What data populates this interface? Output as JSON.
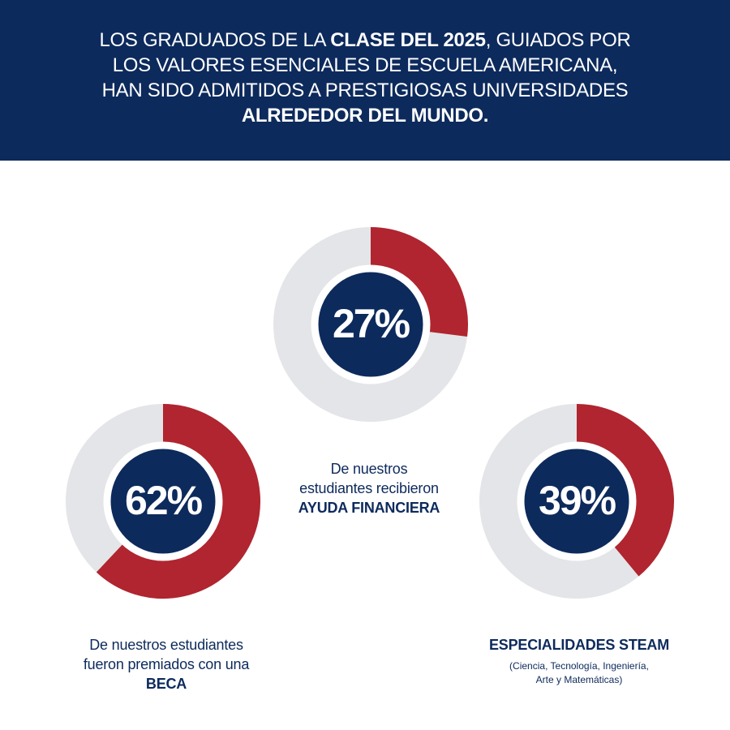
{
  "colors": {
    "navy": "#0d2a5c",
    "red": "#b0252f",
    "track": "#e4e5e8",
    "white": "#ffffff"
  },
  "header": {
    "line1_pre": "LOS GRADUADOS DE LA ",
    "line1_bold": "CLASE DEL 2025",
    "line1_post": ", GUIADOS POR",
    "line2": "LOS VALORES ESENCIALES DE ESCUELA AMERICANA,",
    "line3": "HAN SIDO ADMITIDOS A PRESTIGIOSAS UNIVERSIDADES",
    "line4_bold": "ALREDEDOR DEL MUNDO."
  },
  "stats": [
    {
      "id": "ayuda",
      "percent": 27,
      "label": "27%",
      "caption_line1": "De nuestros",
      "caption_line2": "estudiantes recibieron",
      "caption_bold": "AYUDA FINANCIERA"
    },
    {
      "id": "beca",
      "percent": 62,
      "label": "62%",
      "caption_line1": "De nuestros estudiantes",
      "caption_line2": "fueron premiados con una",
      "caption_bold": "BECA"
    },
    {
      "id": "steam",
      "percent": 39,
      "label": "39%",
      "caption_bold": "ESPECIALIDADES STEAM",
      "caption_small1": "(Ciencia, Tecnología, Ingeniería,",
      "caption_small2": "Arte y Matemáticas)"
    }
  ]
}
